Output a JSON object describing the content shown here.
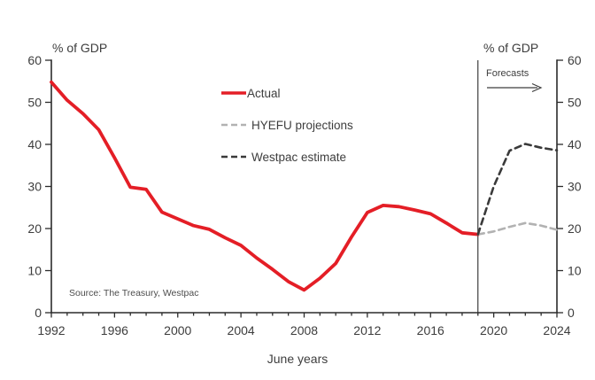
{
  "labels": {
    "left_axis_title": "% of GDP",
    "right_axis_title": "% of GDP",
    "x_axis_title": "June years",
    "forecast_label": "Forecasts",
    "source": "Source: The Treasury, Westpac"
  },
  "legend": [
    {
      "label": "Actual",
      "color": "#e41e26",
      "style": "solid"
    },
    {
      "label": "HYEFU projections",
      "color": "#b2b2b2",
      "style": "dashed"
    },
    {
      "label": "Westpac estimate",
      "color": "#3a3a3a",
      "style": "dashed"
    }
  ],
  "colors": {
    "accent_red": "#e41e26",
    "hyefu_gray": "#b2b2b2",
    "westpac_dark": "#3a3a3a",
    "axis": "#2b2b2b",
    "tick_label": "#3d3d3d",
    "source_text": "#4d4d4d"
  },
  "chart_data": {
    "type": "line",
    "title": "",
    "xlabel": "June years",
    "ylabel": "% of GDP",
    "xlim": [
      1992,
      2024
    ],
    "ylim": [
      0,
      60
    ],
    "x_major_ticks": [
      1992,
      1996,
      2000,
      2004,
      2008,
      2012,
      2016,
      2020,
      2024
    ],
    "x_minor_tick_interval": 1,
    "y_ticks": [
      0,
      10,
      20,
      30,
      40,
      50,
      60
    ],
    "dual_y_axis": true,
    "grid": false,
    "forecast_divider_x": 2019,
    "legend_position": "upper-center-left",
    "series": [
      {
        "name": "Actual",
        "color": "#e41e26",
        "style": "solid",
        "width": 3.8,
        "x": [
          1992,
          1993,
          1994,
          1995,
          1996,
          1997,
          1998,
          1999,
          2000,
          2001,
          2002,
          2003,
          2004,
          2005,
          2006,
          2007,
          2008,
          2009,
          2010,
          2011,
          2012,
          2013,
          2014,
          2015,
          2016,
          2017,
          2018,
          2019
        ],
        "values": [
          54.8,
          50.5,
          47.3,
          43.5,
          36.8,
          29.8,
          29.3,
          23.9,
          22.3,
          20.7,
          19.8,
          17.8,
          16.0,
          13.0,
          10.3,
          7.4,
          5.4,
          8.2,
          11.7,
          18.0,
          23.8,
          25.5,
          25.2,
          24.4,
          23.5,
          21.3,
          19.0,
          18.6
        ]
      },
      {
        "name": "HYEFU projections",
        "color": "#b2b2b2",
        "style": "dashed",
        "width": 2.6,
        "x": [
          2019,
          2020,
          2021,
          2022,
          2023,
          2024
        ],
        "values": [
          18.6,
          19.3,
          20.4,
          21.3,
          20.7,
          19.7
        ]
      },
      {
        "name": "Westpac estimate",
        "color": "#3a3a3a",
        "style": "dashed",
        "width": 2.6,
        "x": [
          2019,
          2020,
          2021,
          2022,
          2023,
          2024
        ],
        "values": [
          18.6,
          30.0,
          38.5,
          40.1,
          39.2,
          38.6
        ]
      }
    ]
  }
}
